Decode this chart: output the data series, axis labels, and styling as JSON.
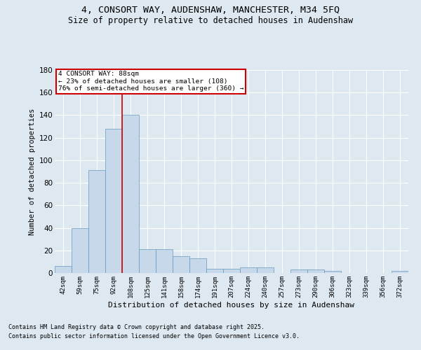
{
  "title_line1": "4, CONSORT WAY, AUDENSHAW, MANCHESTER, M34 5FQ",
  "title_line2": "Size of property relative to detached houses in Audenshaw",
  "xlabel": "Distribution of detached houses by size in Audenshaw",
  "ylabel": "Number of detached properties",
  "bar_color": "#c8d8eb",
  "bar_edge_color": "#6699bb",
  "vline_color": "#cc0000",
  "categories": [
    "42sqm",
    "59sqm",
    "75sqm",
    "92sqm",
    "108sqm",
    "125sqm",
    "141sqm",
    "158sqm",
    "174sqm",
    "191sqm",
    "207sqm",
    "224sqm",
    "240sqm",
    "257sqm",
    "273sqm",
    "290sqm",
    "306sqm",
    "323sqm",
    "339sqm",
    "356sqm",
    "372sqm"
  ],
  "values": [
    6,
    40,
    91,
    128,
    140,
    21,
    21,
    15,
    13,
    4,
    4,
    5,
    5,
    0,
    3,
    3,
    2,
    0,
    0,
    0,
    2
  ],
  "ylim": [
    0,
    180
  ],
  "yticks": [
    0,
    20,
    40,
    60,
    80,
    100,
    120,
    140,
    160,
    180
  ],
  "annotation_title": "4 CONSORT WAY: 88sqm",
  "annotation_line1": "← 23% of detached houses are smaller (108)",
  "annotation_line2": "76% of semi-detached houses are larger (360) →",
  "annotation_box_color": "#ffffff",
  "annotation_box_edge": "#cc0000",
  "footnote1": "Contains HM Land Registry data © Crown copyright and database right 2025.",
  "footnote2": "Contains public sector information licensed under the Open Government Licence v3.0.",
  "background_color": "#dde8f0",
  "grid_color": "#ffffff"
}
